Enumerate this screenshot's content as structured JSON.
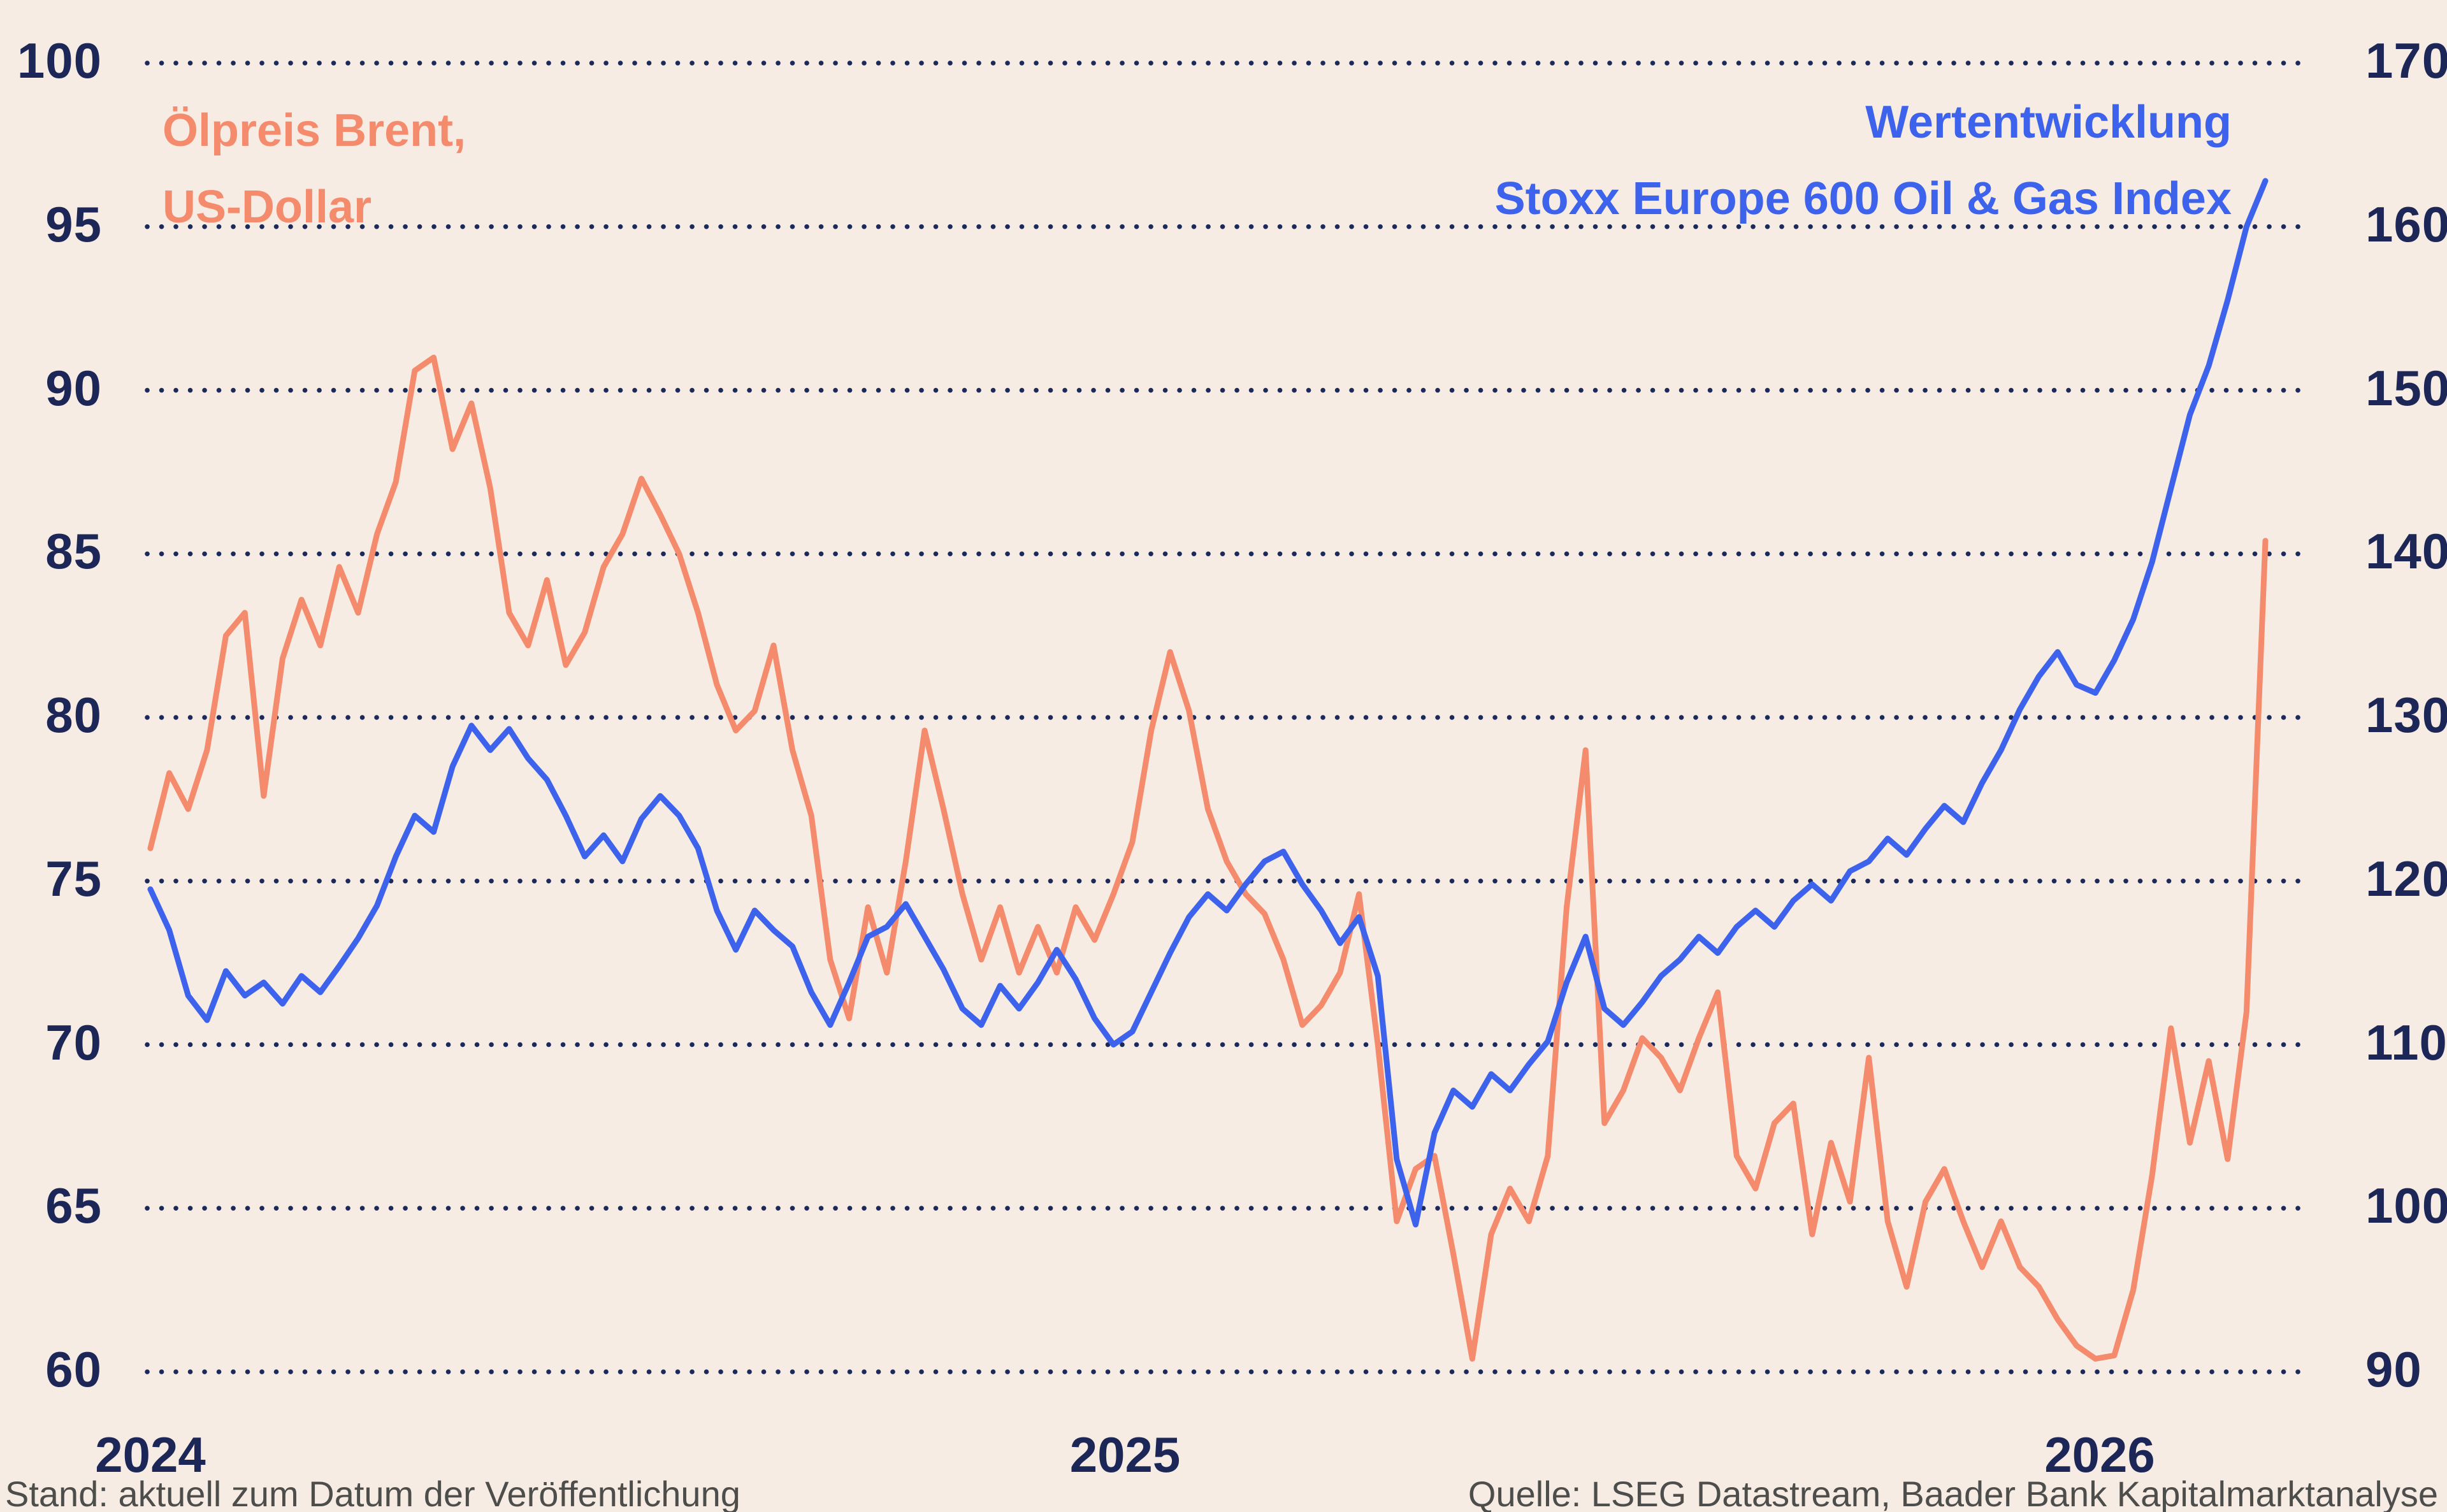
{
  "colors": {
    "background": "#f7ece3",
    "axis_text": "#1d2757",
    "grid_dots": "#1b2a5a",
    "brent_orange": "#f58b6d",
    "stoxx_blue": "#3d63ed",
    "footer_gray": "#4d4d4b"
  },
  "legend_left": {
    "line1": "Ölpreis Brent,",
    "line2": "US-Dollar"
  },
  "legend_right": {
    "line1": "Wertentwicklung",
    "line2": "Stoxx Europe 600 Oil & Gas Index"
  },
  "footer": {
    "left": "Stand: aktuell zum Datum der Veröffentlichung",
    "right": "Quelle: LSEG Datastream, Baader Bank Kapitalmarktanalyse"
  },
  "chart_data": {
    "type": "line",
    "title": "",
    "grid": "dotted-horizontal",
    "x_start": 2024.0,
    "x_end": 2026.17,
    "x_ticks": [
      2024,
      2025,
      2026
    ],
    "left_axis": {
      "label": "Ölpreis Brent, US-Dollar",
      "min": 60,
      "max": 100,
      "ticks": [
        100,
        95,
        90,
        85,
        80,
        75,
        70,
        65,
        60
      ]
    },
    "right_axis": {
      "label": "Stoxx Europe 600 Oil & Gas Index",
      "min": 90,
      "max": 170,
      "ticks": [
        170,
        160,
        150,
        140,
        130,
        120,
        110,
        100,
        90
      ]
    },
    "series": [
      {
        "id": "brent",
        "name": "Ölpreis Brent, US-Dollar",
        "axis": "left",
        "color": "#f58b6d",
        "values": [
          76.0,
          78.3,
          77.2,
          79.0,
          82.5,
          83.2,
          77.6,
          81.8,
          83.6,
          82.2,
          84.6,
          83.2,
          85.6,
          87.2,
          90.6,
          91.0,
          88.2,
          89.6,
          87.0,
          83.2,
          82.2,
          84.2,
          81.6,
          82.6,
          84.6,
          85.6,
          87.3,
          86.2,
          85.0,
          83.2,
          81.0,
          79.6,
          80.2,
          82.2,
          79.0,
          77.0,
          72.6,
          70.8,
          74.2,
          72.2,
          75.6,
          79.6,
          77.2,
          74.6,
          72.6,
          74.2,
          72.2,
          73.6,
          72.2,
          74.2,
          73.2,
          74.6,
          76.2,
          79.6,
          82.0,
          80.2,
          77.2,
          75.6,
          74.6,
          74.0,
          72.6,
          70.6,
          71.2,
          72.2,
          74.6,
          70.0,
          64.6,
          66.2,
          66.6,
          63.6,
          60.4,
          64.2,
          65.6,
          64.6,
          66.6,
          74.2,
          79.0,
          67.6,
          68.6,
          70.2,
          69.6,
          68.6,
          70.2,
          71.6,
          66.6,
          65.6,
          67.6,
          68.2,
          64.2,
          67.0,
          65.2,
          69.6,
          64.6,
          62.6,
          65.2,
          66.2,
          64.6,
          63.2,
          64.6,
          63.2,
          62.6,
          61.6,
          60.8,
          60.4,
          60.5,
          62.5,
          66.0,
          70.5,
          67.0,
          69.5,
          66.5,
          71.0,
          85.4
        ]
      },
      {
        "id": "stoxx",
        "name": "Wertentwicklung Stoxx Europe 600 Oil & Gas Index",
        "axis": "right",
        "color": "#3d63ed",
        "values": [
          119.5,
          117.0,
          113.0,
          111.5,
          114.5,
          113.0,
          113.8,
          112.5,
          114.2,
          113.2,
          114.8,
          116.5,
          118.5,
          121.5,
          124.0,
          123.0,
          127.0,
          129.5,
          128.0,
          129.3,
          127.5,
          126.2,
          124.0,
          121.5,
          122.8,
          121.2,
          123.8,
          125.2,
          124.0,
          122.0,
          118.2,
          115.8,
          118.2,
          117.0,
          116.0,
          113.2,
          111.2,
          113.8,
          116.6,
          117.2,
          118.6,
          116.6,
          114.6,
          112.2,
          111.2,
          113.6,
          112.2,
          113.8,
          115.8,
          114.0,
          111.6,
          110.0,
          110.8,
          113.2,
          115.6,
          117.8,
          119.2,
          118.2,
          119.8,
          121.2,
          121.8,
          119.8,
          118.2,
          116.2,
          117.8,
          114.2,
          103.0,
          99.0,
          104.6,
          107.2,
          106.2,
          108.2,
          107.2,
          108.8,
          110.2,
          113.8,
          116.6,
          112.2,
          111.2,
          112.6,
          114.2,
          115.2,
          116.6,
          115.6,
          117.2,
          118.2,
          117.2,
          118.8,
          119.8,
          118.8,
          120.6,
          121.2,
          122.6,
          121.6,
          123.2,
          124.6,
          123.6,
          126.0,
          128.0,
          130.5,
          132.5,
          134.0,
          132.0,
          131.5,
          133.5,
          136.0,
          139.5,
          144.0,
          148.5,
          151.5,
          155.5,
          160.0,
          162.8
        ]
      }
    ]
  }
}
